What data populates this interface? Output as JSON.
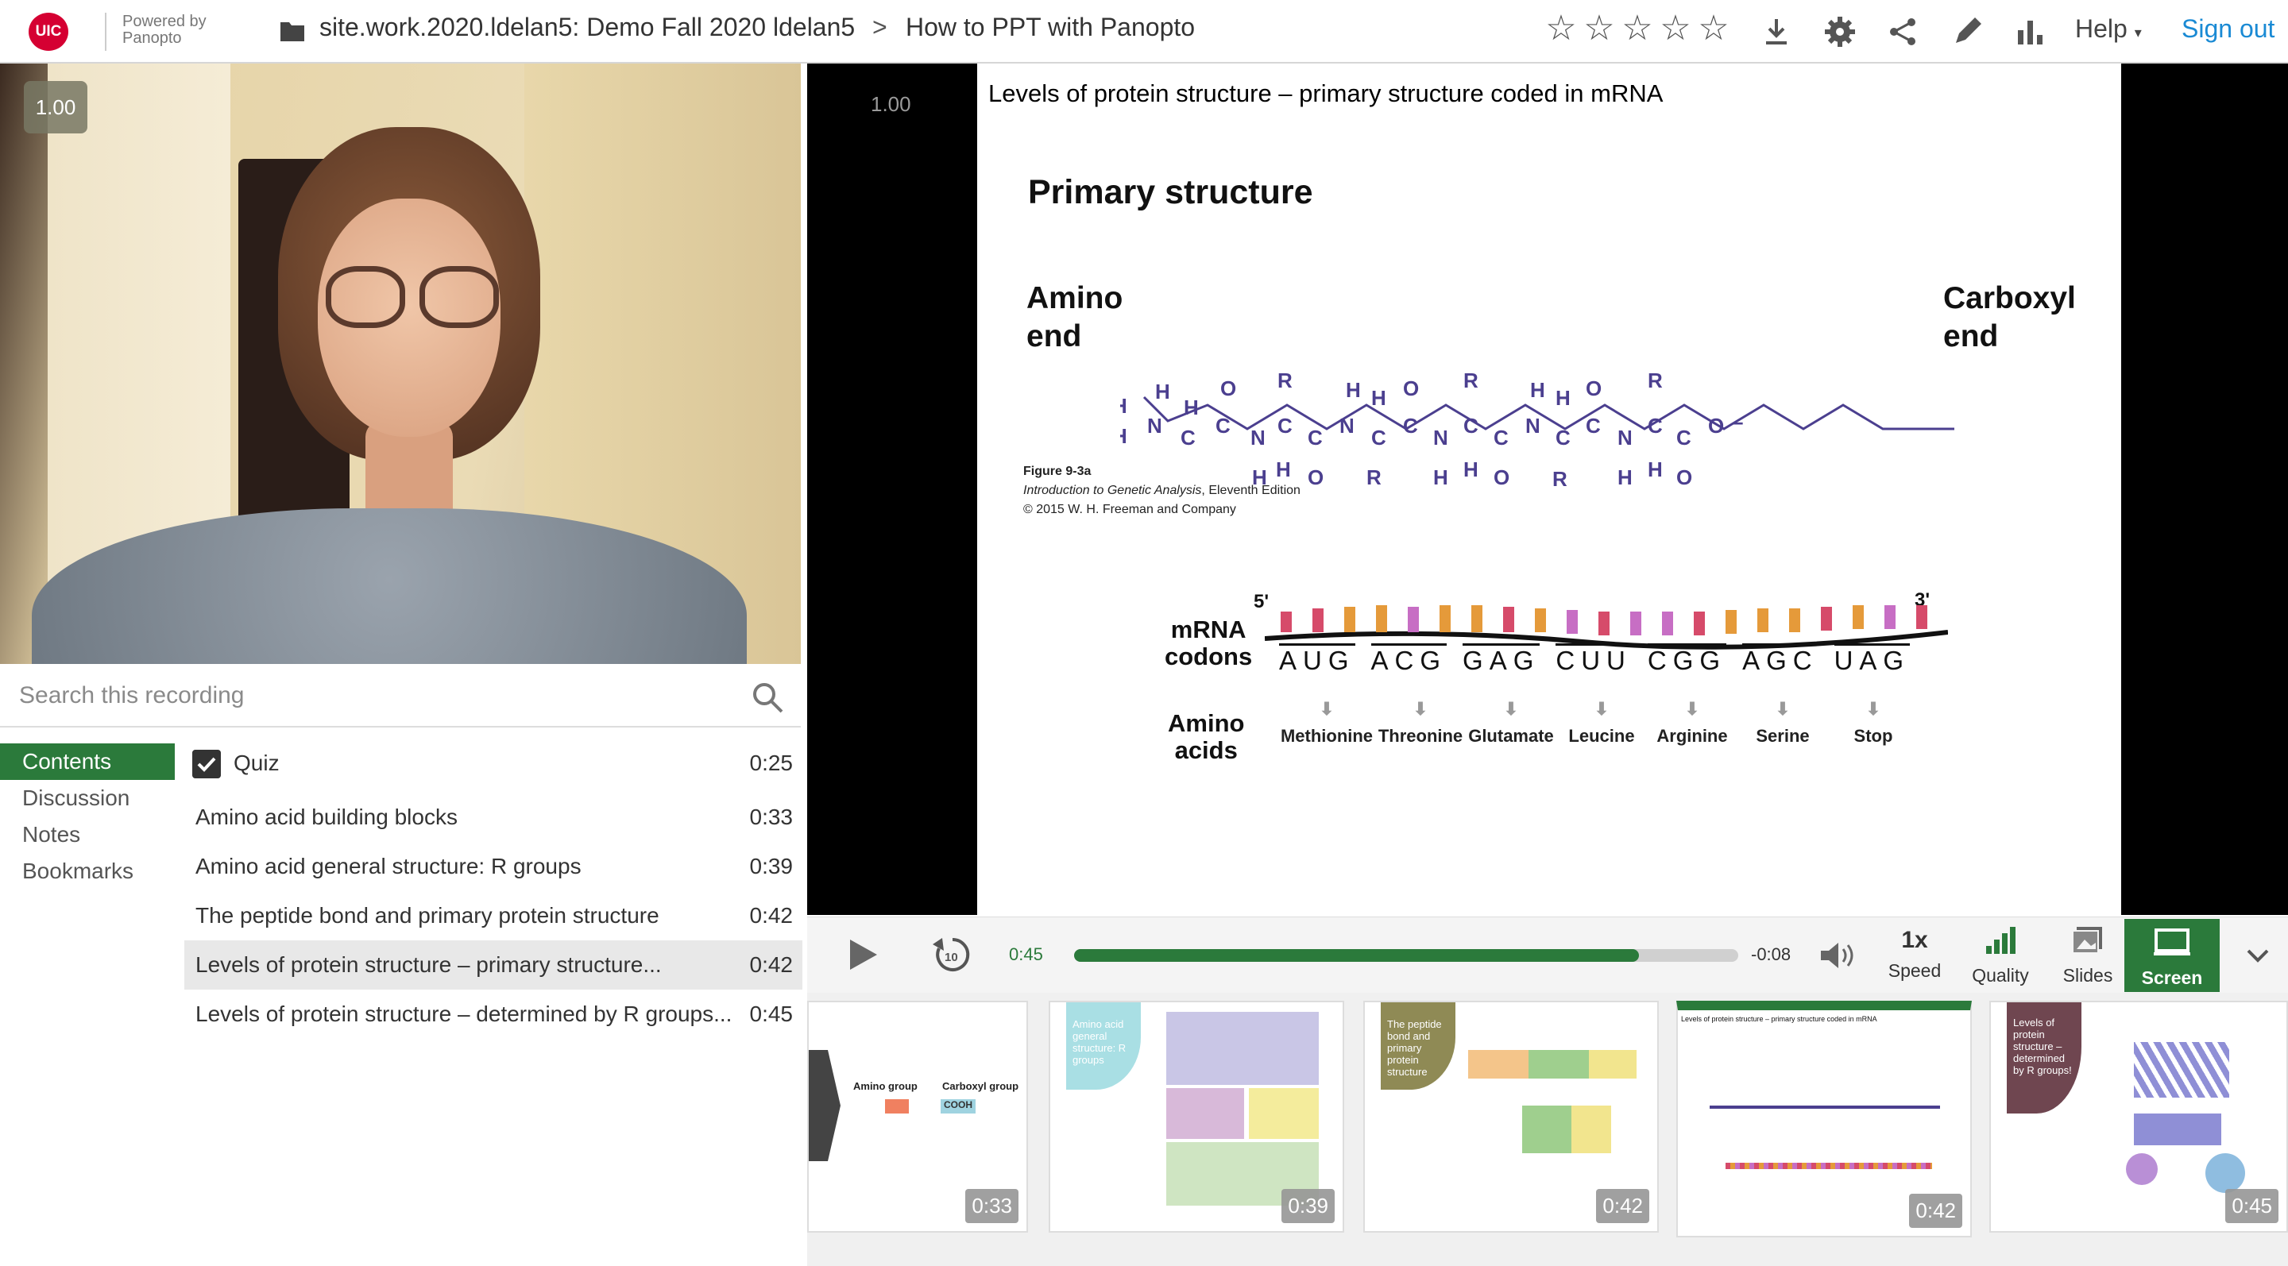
{
  "header": {
    "logo_text": "UIC",
    "powered_by_line1": "Powered by",
    "powered_by_line2": "Panopto",
    "folder": "site.work.2020.ldelan5: Demo Fall 2020 ldelan5",
    "breadcrumb_sep": ">",
    "session_title": "How to PPT with Panopto",
    "rating_stars": 5,
    "help_label": "Help",
    "signout_label": "Sign out",
    "icons": [
      "download-icon",
      "gear-icon",
      "share-icon",
      "edit-icon",
      "stats-icon"
    ]
  },
  "webcam": {
    "speed_badge": "1.00"
  },
  "search": {
    "placeholder": "Search this recording"
  },
  "nav_tabs": [
    "Contents",
    "Discussion",
    "Notes",
    "Bookmarks"
  ],
  "contents": [
    {
      "title": "Quiz",
      "time": "0:25",
      "type": "quiz"
    },
    {
      "title": "Amino acid building blocks",
      "time": "0:33"
    },
    {
      "title": "Amino acid general structure: R groups",
      "time": "0:39"
    },
    {
      "title": "The peptide bond and primary protein structure",
      "time": "0:42"
    },
    {
      "title": "Levels of protein structure – primary structure...",
      "time": "0:42",
      "selected": true
    },
    {
      "title": "Levels of protein structure – determined by R groups...",
      "time": "0:45"
    }
  ],
  "player": {
    "speed_badge": "1.00"
  },
  "slide": {
    "heading": "Levels of protein structure – primary structure coded in mRNA",
    "subtitle": "Primary structure",
    "amino_end_1": "Amino",
    "amino_end_2": "end",
    "carboxyl_end_1": "Carboxyl",
    "carboxyl_end_2": "end",
    "figure_label": "Figure 9-3a",
    "figure_book": "Introduction to Genetic Analysis",
    "figure_edition": ", Eleventh Edition",
    "figure_copyright": "© 2015 W. H. Freeman and Company",
    "five_prime": "5'",
    "three_prime": "3'",
    "mrna_label_1": "mRNA",
    "mrna_label_2": "codons",
    "amino_label_1": "Amino",
    "amino_label_2": "acids",
    "codons": [
      "AUG",
      "ACG",
      "GAG",
      "CUU",
      "CGG",
      "AGC",
      "UAG"
    ],
    "amino_acids": [
      "Methionine",
      "Threonine",
      "Glutamate",
      "Leucine",
      "Arginine",
      "Serine",
      "Stop"
    ]
  },
  "controls": {
    "elapsed": "0:45",
    "remaining": "-0:08",
    "progress_fraction": 0.85,
    "speed_value": "1x",
    "speed_label": "Speed",
    "quality_label": "Quality",
    "slides_label": "Slides",
    "screen_label": "Screen"
  },
  "thumbnails": [
    {
      "time": "0:33",
      "text_a": "Amino group",
      "text_b": "Carboxyl group",
      "text_c": "COOH"
    },
    {
      "time": "0:39",
      "text": "Amino acid general structure: R groups"
    },
    {
      "time": "0:42",
      "text": "The peptide bond and primary protein structure"
    },
    {
      "time": "0:42",
      "text": "Levels of protein structure – primary structure coded in mRNA",
      "selected": true
    },
    {
      "time": "0:45",
      "text": "Levels of protein structure – determined by R groups!"
    }
  ],
  "colors": {
    "accent_green": "#2b7a3b",
    "link_blue": "#1a8ad4",
    "uic_red": "#d50032",
    "chain_purple": "#4b3f8f"
  }
}
